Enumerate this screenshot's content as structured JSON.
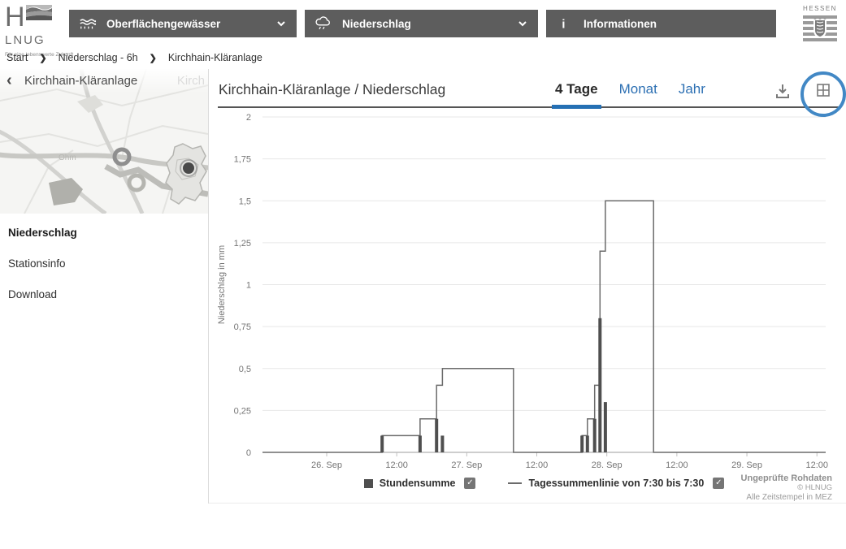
{
  "colors": {
    "accent_blue": "#2d70b3",
    "tab_underline": "#2570b4",
    "annotation_circle": "#4288c5",
    "topbar_button_bg": "#5d5d5d",
    "bar_color": "#4f4f4f",
    "line_color": "#6b6b6b",
    "grid_color": "#e7e7e7"
  },
  "header": {
    "logo_brand_h": "H",
    "logo_brand_rest": "LNUG",
    "logo_tagline": "Für eine lebenswerte Zukunft",
    "nav": [
      {
        "label": "Oberflächengewässer",
        "icon": "waves-icon"
      },
      {
        "label": "Niederschlag",
        "icon": "rain-cloud-icon"
      },
      {
        "label": "Informationen",
        "icon": "info-icon"
      }
    ],
    "state_logo_text": "HESSEN"
  },
  "breadcrumb": {
    "items": [
      "Start",
      "Niederschlag - 6h",
      "Kirchhain-Kläranlage"
    ]
  },
  "sidebar": {
    "map_title": "Kirchhain-Kläranlage",
    "map_river_label": "Ohm",
    "map_faded_label": "Kirch",
    "menu": [
      {
        "label": "Niederschlag",
        "active": true
      },
      {
        "label": "Stationsinfo",
        "active": false
      },
      {
        "label": "Download",
        "active": false
      }
    ]
  },
  "main": {
    "title": "Kirchhain-Kläranlage / Niederschlag",
    "tabs": [
      {
        "label": "4 Tage",
        "active": true
      },
      {
        "label": "Monat",
        "active": false
      },
      {
        "label": "Jahr",
        "active": false
      }
    ],
    "footer": {
      "line1": "Ungeprüfte Rohdaten",
      "line2": "© HLNUG",
      "line3": "Alle Zeitstempel in MEZ"
    }
  },
  "chart_data": {
    "type": "bar",
    "title": "Niederschlag Kirchhain-Kläranlage, 4 Tage",
    "xlabel": "",
    "ylabel": "Niederschlag in mm",
    "ylim": [
      0,
      2
    ],
    "ytick_step": 0.25,
    "ytick_labels": [
      "0",
      "0,25",
      "0,5",
      "0,75",
      "1",
      "1,25",
      "1,5",
      "1,75",
      "2"
    ],
    "grid": true,
    "x_domain_minutes_from_26Sep": [
      -660,
      5130
    ],
    "xticks": [
      {
        "t": 0,
        "label": "26. Sep"
      },
      {
        "t": 720,
        "label": "12:00"
      },
      {
        "t": 1440,
        "label": "27. Sep"
      },
      {
        "t": 2160,
        "label": "12:00"
      },
      {
        "t": 2880,
        "label": "28. Sep"
      },
      {
        "t": 3600,
        "label": "12:00"
      },
      {
        "t": 4320,
        "label": "29. Sep"
      },
      {
        "t": 5040,
        "label": "12:00"
      }
    ],
    "series": [
      {
        "name": "Stundensumme",
        "type": "bar",
        "color": "#4f4f4f",
        "points": [
          {
            "time": "26. Sep 09:30",
            "t": 570,
            "v": 0.1
          },
          {
            "time": "26. Sep 16:00",
            "t": 960,
            "v": 0.1
          },
          {
            "time": "26. Sep 18:50",
            "t": 1130,
            "v": 0.2
          },
          {
            "time": "26. Sep 19:50",
            "t": 1190,
            "v": 0.1
          },
          {
            "time": "27. Sep 19:45",
            "t": 2625,
            "v": 0.1
          },
          {
            "time": "27. Sep 20:40",
            "t": 2680,
            "v": 0.1
          },
          {
            "time": "27. Sep 21:55",
            "t": 2755,
            "v": 0.2
          },
          {
            "time": "27. Sep 22:50",
            "t": 2810,
            "v": 0.8
          },
          {
            "time": "27. Sep 23:45",
            "t": 2865,
            "v": 0.3
          }
        ]
      },
      {
        "name": "Tagessummenlinie von 7:30 bis 7:30",
        "type": "step-line",
        "color": "#6b6b6b",
        "points": [
          {
            "t": -660,
            "v": 0
          },
          {
            "t": 570,
            "v": 0.1
          },
          {
            "t": 960,
            "v": 0.2
          },
          {
            "t": 1130,
            "v": 0.4
          },
          {
            "t": 1190,
            "v": 0.5
          },
          {
            "t": 1920,
            "v": 0
          },
          {
            "t": 2625,
            "v": 0.1
          },
          {
            "t": 2680,
            "v": 0.2
          },
          {
            "t": 2755,
            "v": 0.4
          },
          {
            "t": 2810,
            "v": 1.2
          },
          {
            "t": 2865,
            "v": 1.5
          },
          {
            "t": 3360,
            "v": 0
          },
          {
            "t": 5130,
            "v": 0
          }
        ]
      }
    ],
    "legend": [
      {
        "swatch": "square",
        "label": "Stundensumme",
        "checked": true
      },
      {
        "swatch": "line",
        "label": "Tagessummenlinie von 7:30 bis 7:30",
        "checked": true
      }
    ],
    "legend_position": "bottom-center"
  }
}
